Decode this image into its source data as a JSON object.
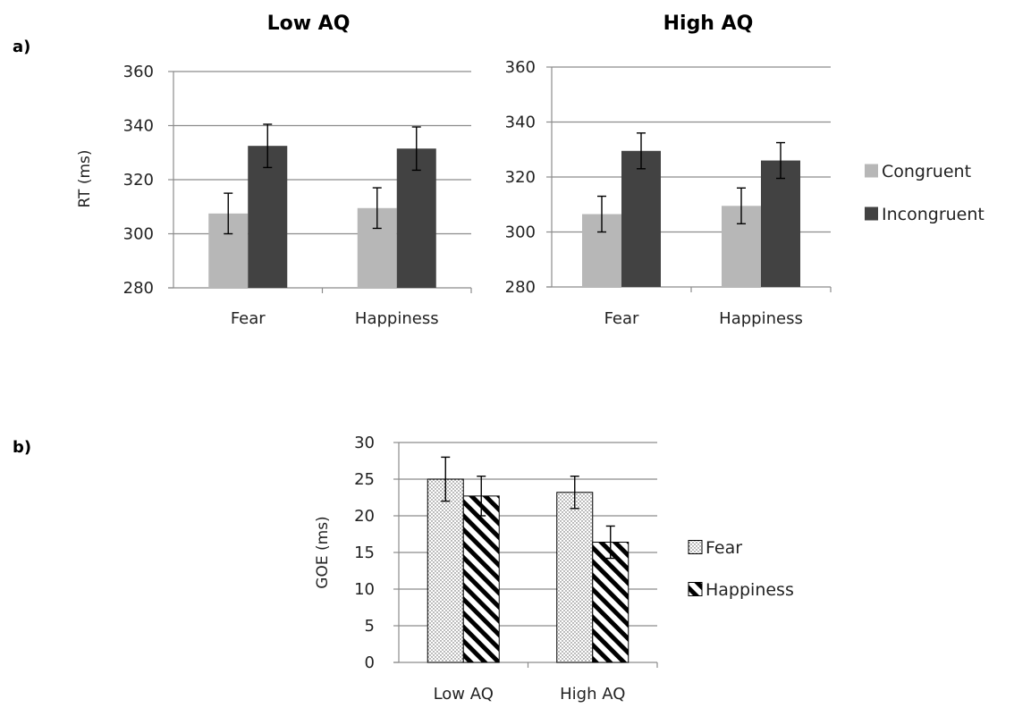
{
  "panel_labels": [
    "a)",
    "b)"
  ],
  "chart_data": [
    {
      "type": "bar",
      "title": "Low AQ",
      "xlabel": "",
      "ylabel": "RT (ms)",
      "ylim": [
        280,
        360
      ],
      "yticks": [
        280,
        300,
        320,
        340,
        360
      ],
      "categories": [
        "Fear",
        "Happiness"
      ],
      "grid": true,
      "legend": "none",
      "series": [
        {
          "name": "Congruent",
          "color": "#b7b7b7",
          "values": [
            307.5,
            309.5
          ],
          "errors": [
            7.5,
            7.5
          ]
        },
        {
          "name": "Incongruent",
          "color": "#424242",
          "values": [
            332.5,
            331.5
          ],
          "errors": [
            8,
            8
          ]
        }
      ]
    },
    {
      "type": "bar",
      "title": "High AQ",
      "xlabel": "",
      "ylabel": "",
      "ylim": [
        280,
        360
      ],
      "yticks": [
        280,
        300,
        320,
        340,
        360
      ],
      "categories": [
        "Fear",
        "Happiness"
      ],
      "grid": true,
      "legend": "right",
      "series": [
        {
          "name": "Congruent",
          "color": "#b7b7b7",
          "values": [
            306.5,
            309.5
          ],
          "errors": [
            6.5,
            6.5
          ]
        },
        {
          "name": "Incongruent",
          "color": "#424242",
          "values": [
            329.5,
            326
          ],
          "errors": [
            6.5,
            6.5
          ]
        }
      ]
    },
    {
      "type": "bar",
      "title": "",
      "xlabel": "",
      "ylabel": "GOE (ms)",
      "ylim": [
        0,
        30
      ],
      "yticks": [
        0,
        5,
        10,
        15,
        20,
        25,
        30
      ],
      "categories": [
        "Low AQ",
        "High AQ"
      ],
      "grid": true,
      "legend": "right",
      "series": [
        {
          "name": "Fear",
          "pattern": "dots",
          "values": [
            25,
            23.2
          ],
          "errors": [
            3,
            2.2
          ]
        },
        {
          "name": "Happiness",
          "pattern": "diagonal-stripes",
          "values": [
            22.7,
            16.4
          ],
          "errors": [
            2.7,
            2.2
          ]
        }
      ]
    }
  ]
}
